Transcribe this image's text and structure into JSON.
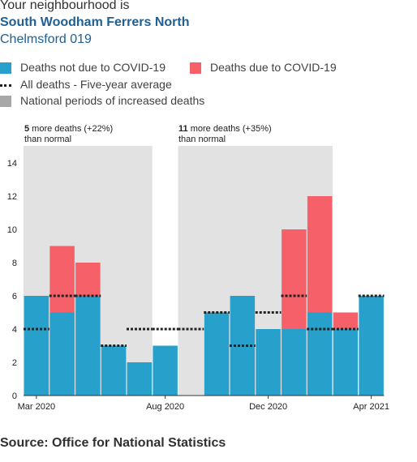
{
  "header": {
    "intro": "Your neighbourhood is",
    "area_name": "South Woodham Ferrers North",
    "area_code": "Chelmsford 019"
  },
  "legend": {
    "not_covid": "Deaths not due to COVID-19",
    "covid": "Deaths due to COVID-19",
    "average": "All deaths - Five-year average",
    "periods": "National periods of increased deaths"
  },
  "colors": {
    "not_covid": "#27a0cc",
    "covid": "#f66068",
    "period": "#e2e2e3",
    "average": "#222222"
  },
  "annotations": [
    {
      "bold": "5",
      "text": " more deaths (+22%)",
      "line2": "than normal"
    },
    {
      "bold": "11",
      "text": " more deaths (+35%)",
      "line2": "than normal"
    }
  ],
  "source": "Source: Office for National Statistics",
  "chart_data": {
    "type": "bar",
    "stacked": true,
    "categories": [
      "Mar 2020",
      "Apr 2020",
      "May 2020",
      "Jun 2020",
      "Jul 2020",
      "Aug 2020",
      "Sep 2020",
      "Oct 2020",
      "Nov 2020",
      "Dec 2020",
      "Jan 2021",
      "Feb 2021",
      "Mar 2021",
      "Apr 2021"
    ],
    "x_tick_labels": [
      "Mar 2020",
      "Aug 2020",
      "Dec 2020",
      "Apr 2021"
    ],
    "series": [
      {
        "name": "Deaths not due to COVID-19",
        "values": [
          6,
          5,
          6,
          3,
          2,
          3,
          0,
          5,
          6,
          4,
          4,
          5,
          4,
          6
        ]
      },
      {
        "name": "Deaths due to COVID-19",
        "values": [
          0,
          4,
          2,
          0,
          0,
          0,
          0,
          0,
          0,
          0,
          6,
          7,
          1,
          0
        ]
      }
    ],
    "five_year_average": [
      4,
      6,
      6,
      3,
      4,
      4,
      4,
      5,
      3,
      5,
      6,
      4,
      4,
      6
    ],
    "increased_death_periods": [
      [
        "Mar 2020",
        "Aug 2020"
      ],
      [
        "Sep 2020",
        "Mar 2021"
      ]
    ],
    "ylim": [
      0,
      15
    ],
    "y_ticks": [
      0,
      2,
      4,
      6,
      8,
      10,
      12,
      14
    ],
    "xlabel": "",
    "ylabel": ""
  }
}
